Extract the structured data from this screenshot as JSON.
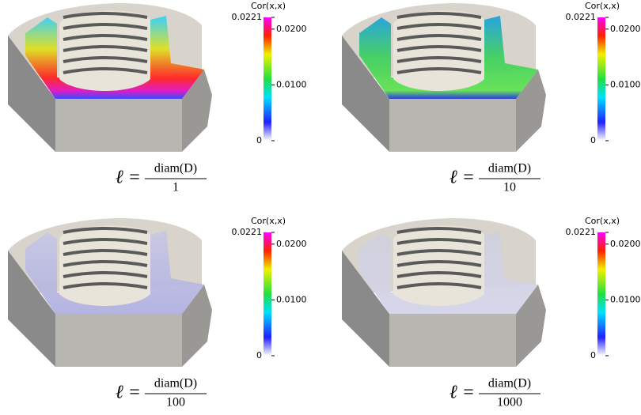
{
  "panels": [
    {
      "colorbar": {
        "title": "Cor(x,x)",
        "range": [
          0,
          0.0221
        ],
        "ticks": [
          0,
          {
            "value": 0.01,
            "label": "0.0100"
          },
          {
            "value": 0.02,
            "label": "0.0200"
          },
          0.0221
        ]
      },
      "caption": {
        "lhs": "ℓ =",
        "numerator": "diam(D)",
        "denominator": "1"
      }
    },
    {
      "colorbar": {
        "title": "Cor(x,x)",
        "range": [
          0,
          0.0221
        ],
        "ticks": [
          0,
          {
            "value": 0.01,
            "label": "0.0100"
          },
          {
            "value": 0.02,
            "label": "0.0200"
          },
          0.0221
        ]
      },
      "caption": {
        "lhs": "ℓ =",
        "numerator": "diam(D)",
        "denominator": "10"
      }
    },
    {
      "colorbar": {
        "title": "Cor(x,x)",
        "range": [
          0,
          0.0221
        ],
        "ticks": [
          0,
          {
            "value": 0.01,
            "label": "0.0100"
          },
          {
            "value": 0.02,
            "label": "0.0200"
          },
          0.0221
        ]
      },
      "caption": {
        "lhs": "ℓ =",
        "numerator": "diam(D)",
        "denominator": "100"
      }
    },
    {
      "colorbar": {
        "title": "Cor(x,x)",
        "range": [
          0,
          0.0221
        ],
        "ticks": [
          0,
          {
            "value": 0.01,
            "label": "0.0100"
          },
          {
            "value": 0.02,
            "label": "0.0200"
          },
          0.0221
        ]
      },
      "caption": {
        "lhs": "ℓ =",
        "numerator": "diam(D)",
        "denominator": "1000"
      }
    }
  ]
}
